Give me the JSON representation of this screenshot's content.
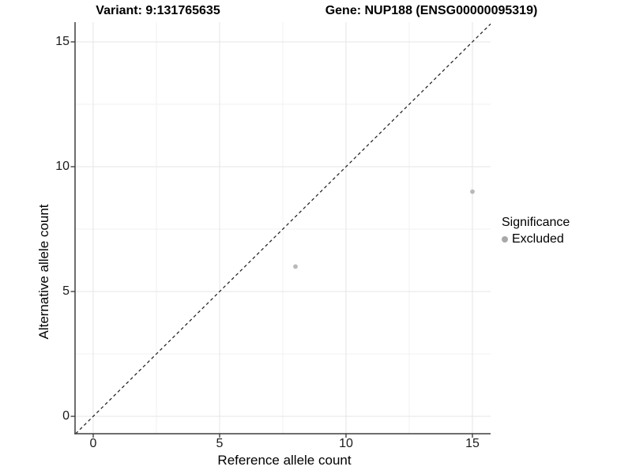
{
  "chart_data": {
    "type": "scatter",
    "title_left": "Variant: 9:131765635",
    "title_right": "Gene: NUP188 (ENSG00000095319)",
    "xlabel": "Reference allele count",
    "ylabel": "Alternative allele count",
    "xticks": [
      0,
      5,
      10,
      15
    ],
    "yticks": [
      0,
      5,
      10,
      15
    ],
    "x_minor_ticks": [
      2.5,
      7.5,
      12.5
    ],
    "y_minor_ticks": [
      2.5,
      7.5,
      12.5
    ],
    "xlim": [
      -0.72,
      15.72
    ],
    "ylim": [
      -0.7,
      15.73
    ],
    "grid": true,
    "series": [
      {
        "name": "Excluded",
        "color": "#b9b9b9",
        "points": [
          {
            "x": 8,
            "y": 6
          },
          {
            "x": 15,
            "y": 9
          }
        ]
      }
    ],
    "reference_line": {
      "type": "identity",
      "slope": 1,
      "intercept": 0,
      "style": "dashed"
    },
    "legend": {
      "position": "right",
      "title": "Significance",
      "entries": [
        {
          "label": "Excluded",
          "color": "#a8a8a8"
        }
      ]
    },
    "colors": {
      "background": "#ffffff",
      "grid_major": "#e6e6e6",
      "grid_minor": "#f1f1f1",
      "axis_line": "#3f3f3f",
      "tick_mark": "#333333",
      "dashed_line": "#1a1a1a",
      "text": "#000000"
    }
  }
}
